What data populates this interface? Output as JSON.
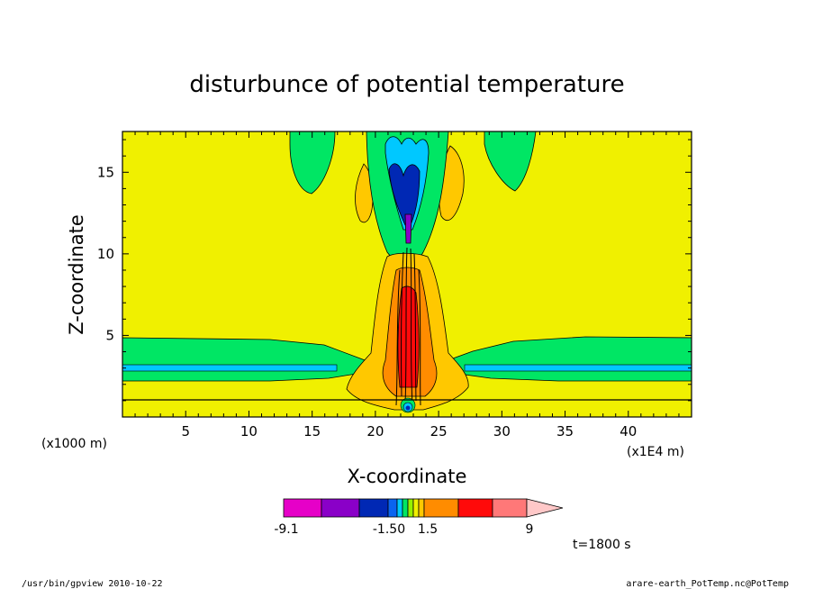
{
  "chart_data": {
    "type": "heatmap",
    "title": "disturbunce of potential temperature",
    "xlabel": "X-coordinate",
    "ylabel": "Z-coordinate",
    "x_unit": "(x1E4 m)",
    "y_unit": "(x1000 m)",
    "xlim": [
      0,
      45
    ],
    "ylim": [
      0,
      17.5
    ],
    "x_ticks": [
      5,
      10,
      15,
      20,
      25,
      30,
      35,
      40
    ],
    "y_ticks": [
      5,
      10,
      15
    ],
    "colorbar": {
      "labels": [
        "-9.1",
        "-1.50",
        "1.5",
        "9"
      ],
      "colors": [
        "#e600c8",
        "#8a00c8",
        "#0028b4",
        "#0a64f0",
        "#00c8ff",
        "#00e664",
        "#96f000",
        "#f0f000",
        "#ffc800",
        "#ff8c00",
        "#ff0a0a",
        "#ff7878",
        "#ffc8c8"
      ]
    },
    "time_label": "t=1800 s"
  },
  "footer": {
    "left": "/usr/bin/gpview   2010-10-22",
    "right": "arare-earth_PotTemp.nc@PotTemp"
  }
}
